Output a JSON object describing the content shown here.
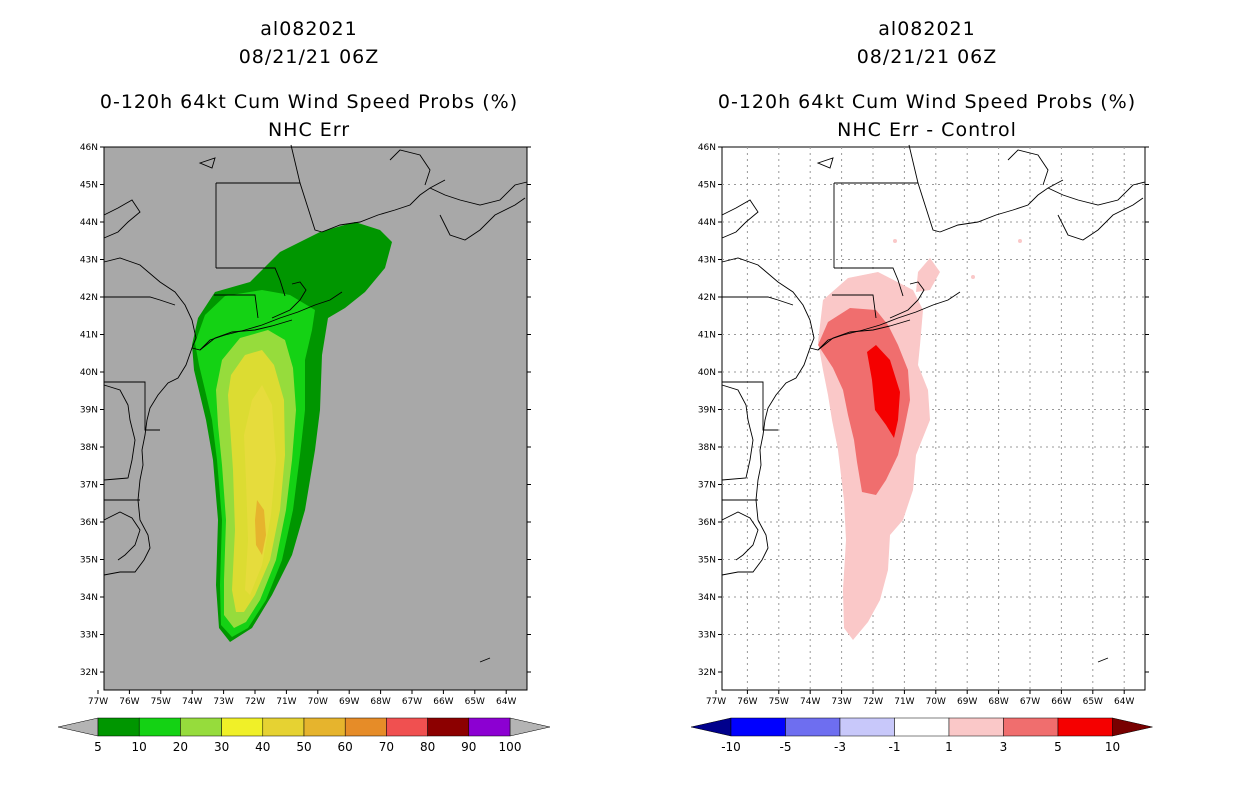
{
  "axes": {
    "lat_labels": [
      "46N",
      "45N",
      "44N",
      "43N",
      "42N",
      "41N",
      "40N",
      "39N",
      "38N",
      "37N",
      "36N",
      "35N",
      "34N",
      "33N",
      "32N"
    ],
    "lon_labels": [
      "77W",
      "76W",
      "75W",
      "74W",
      "73W",
      "72W",
      "71W",
      "70W",
      "69W",
      "68W",
      "67W",
      "66W",
      "65W",
      "64W"
    ]
  },
  "left": {
    "title_line1": "al082021",
    "title_line2": "08/21/21 06Z",
    "title_line3": "0-120h 64kt Cum Wind Speed Probs (%)",
    "title_line4": "NHC Err",
    "colorbar": {
      "labels": [
        "5",
        "10",
        "20",
        "30",
        "40",
        "50",
        "60",
        "70",
        "80",
        "90",
        "100"
      ],
      "colors": [
        "#009600",
        "#14d214",
        "#96dc3c",
        "#f0f028",
        "#e6d232",
        "#e6b42d",
        "#e68c28",
        "#f05050",
        "#8c0000",
        "#8c00d2"
      ],
      "end_color": "#b4b4b4"
    },
    "contour_colors": [
      "#009600",
      "#14d214",
      "#96dc3c",
      "#dcdc32",
      "#e6dc3c",
      "#e6b42d"
    ],
    "background": "#a8a8a8"
  },
  "right": {
    "title_line1": "al082021",
    "title_line2": "08/21/21 06Z",
    "title_line3": "0-120h 64kt Cum Wind Speed Probs (%)",
    "title_line4": "NHC Err - Control",
    "colorbar": {
      "labels": [
        "-10",
        "-5",
        "-3",
        "-1",
        "1",
        "3",
        "5",
        "10"
      ],
      "colors": [
        "#0000ff",
        "#6e6ef0",
        "#c8c8fa",
        "#ffffff",
        "#fac8c8",
        "#f06e6e",
        "#f50000"
      ],
      "start_color": "#00008c",
      "end_color": "#780000"
    },
    "contour_colors": [
      "#fac8c8",
      "#f06e6e",
      "#f50000"
    ],
    "background": "#ffffff"
  }
}
